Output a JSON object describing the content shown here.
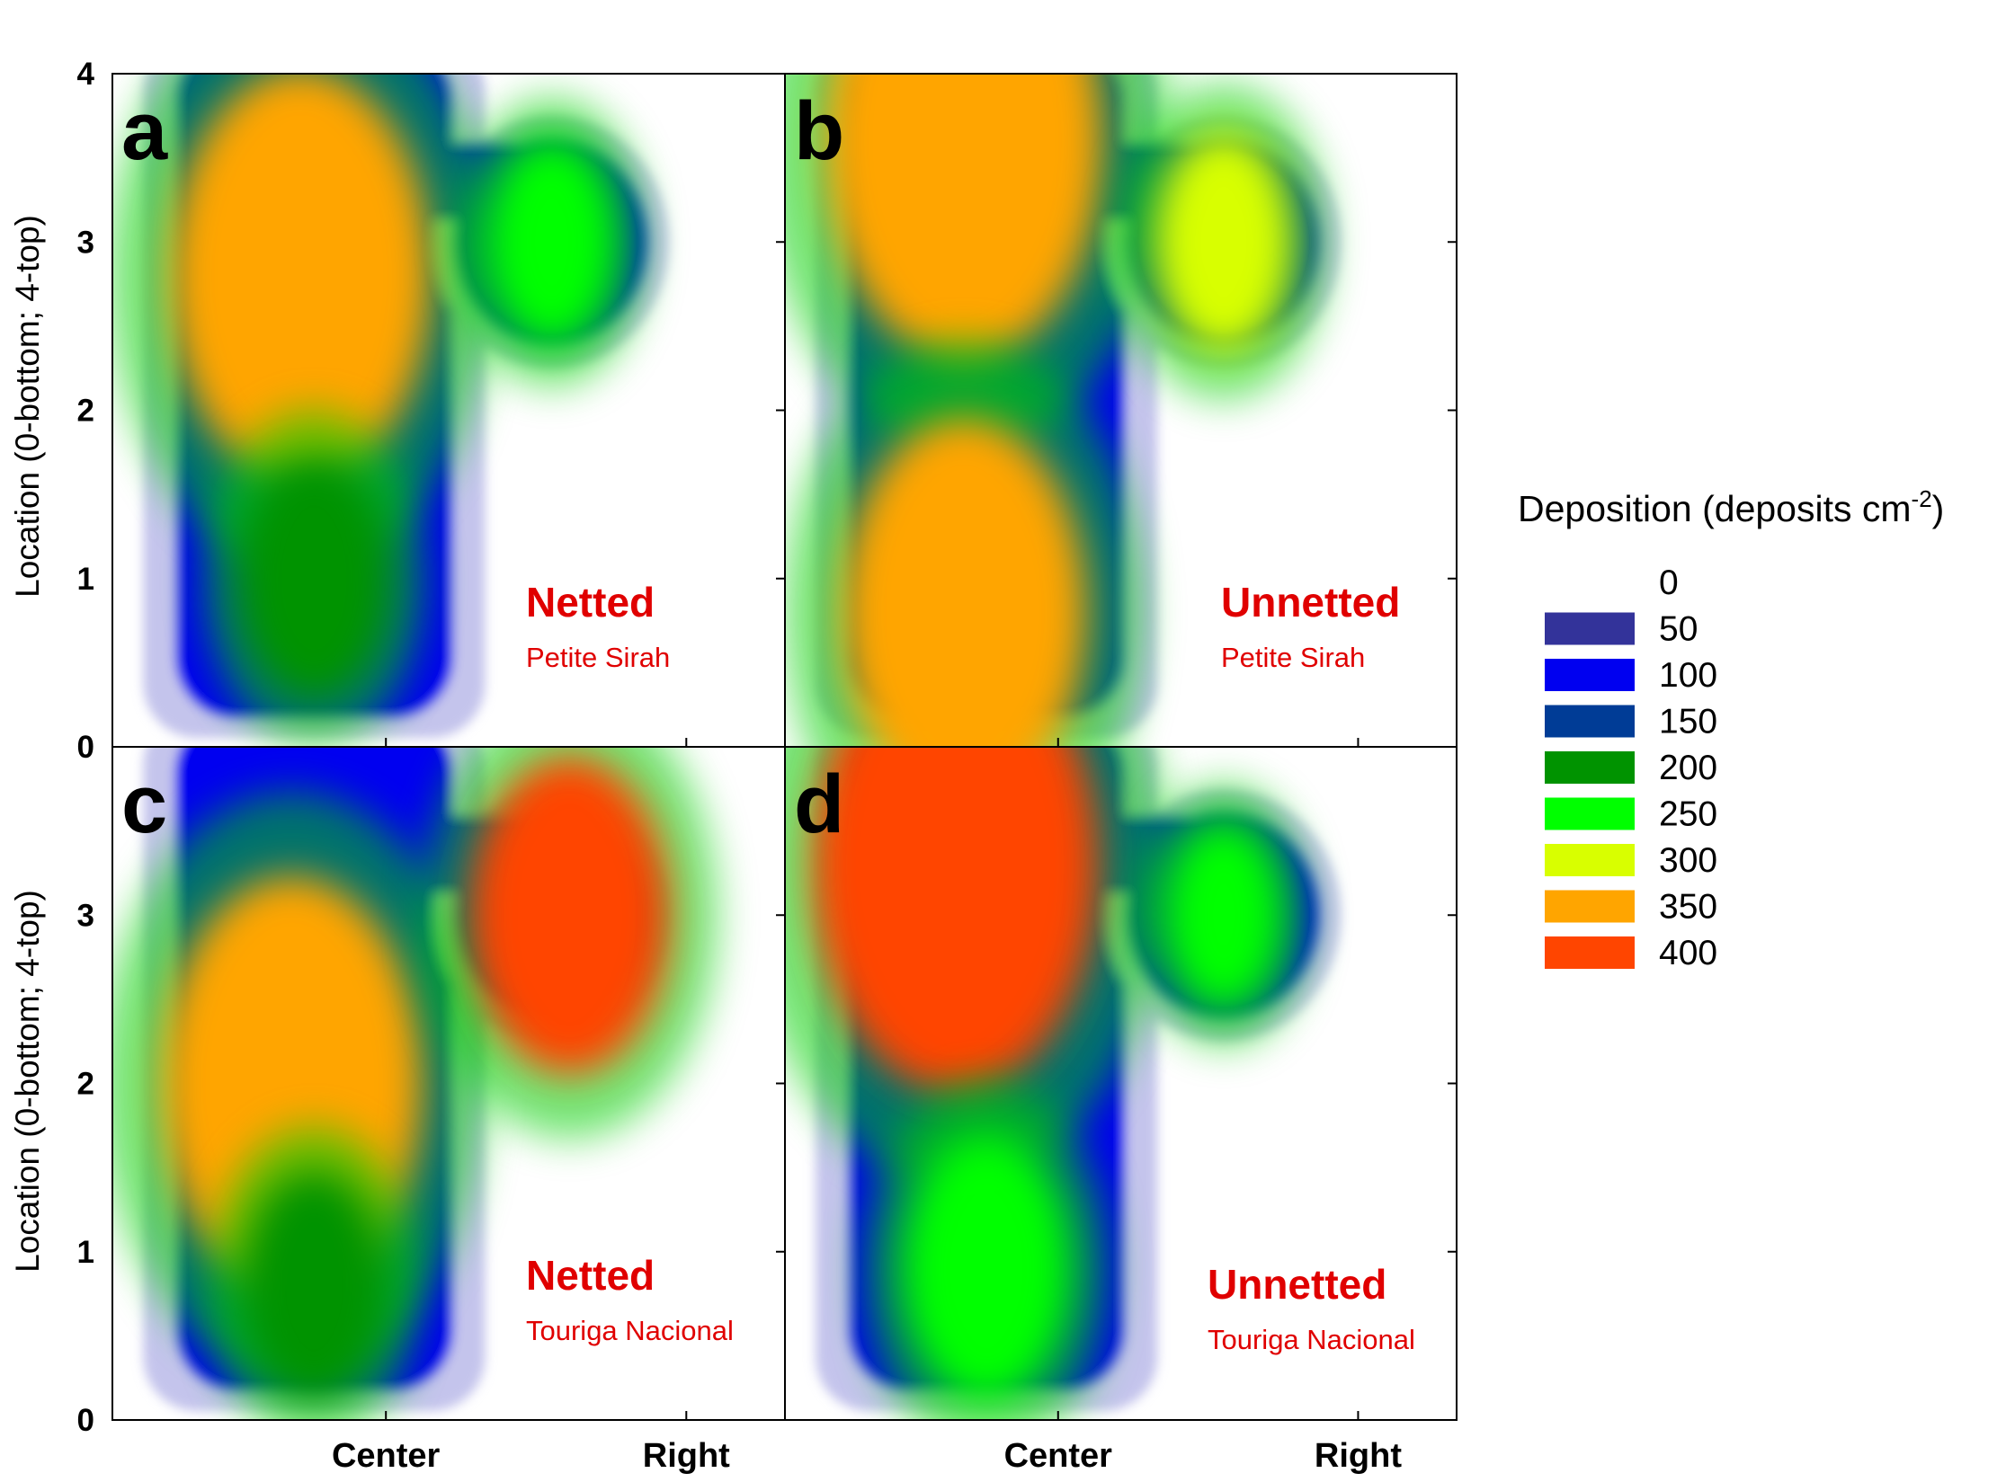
{
  "chart_data": {
    "type": "heatmap",
    "ylabel": "Location (0-bottom; 4-top)",
    "y_ticks": [
      "0",
      "1",
      "2",
      "3",
      "4"
    ],
    "ylim": [
      0,
      4
    ],
    "x_categories": [
      "Center",
      "Right"
    ],
    "legend": {
      "title": "Deposition (deposits cm",
      "title_sup": "-2",
      "title_end": ")",
      "levels": [
        {
          "value": "0",
          "color": "#ffffff"
        },
        {
          "value": "50",
          "color": "#33339a"
        },
        {
          "value": "100",
          "color": "#0000f0"
        },
        {
          "value": "150",
          "color": "#003c96"
        },
        {
          "value": "200",
          "color": "#009300"
        },
        {
          "value": "250",
          "color": "#00ff00"
        },
        {
          "value": "300",
          "color": "#d8ff00"
        },
        {
          "value": "350",
          "color": "#ffa500"
        },
        {
          "value": "400",
          "color": "#ff4500"
        }
      ]
    },
    "panels": [
      {
        "letter": "a",
        "treatment": "Netted",
        "cultivar": "Petite Sirah",
        "hotspots": [
          {
            "column": "Center",
            "x": 0.42,
            "y": 2.8,
            "value": 370
          },
          {
            "column": "Center",
            "x": 0.45,
            "y": 1.0,
            "value": 240
          },
          {
            "column": "Right",
            "x": 0.98,
            "y": 3.0,
            "value": 280
          }
        ]
      },
      {
        "letter": "b",
        "treatment": "Unnetted",
        "cultivar": "Petite Sirah",
        "hotspots": [
          {
            "column": "Center",
            "x": 0.4,
            "y": 3.6,
            "value": 390
          },
          {
            "column": "Center",
            "x": 0.4,
            "y": 0.8,
            "value": 350
          },
          {
            "column": "Right",
            "x": 0.98,
            "y": 3.0,
            "value": 300
          }
        ]
      },
      {
        "letter": "c",
        "treatment": "Netted",
        "cultivar": "Touriga Nacional",
        "hotspots": [
          {
            "column": "Center",
            "x": 0.4,
            "y": 2.0,
            "value": 370
          },
          {
            "column": "Center",
            "x": 0.45,
            "y": 0.8,
            "value": 230
          },
          {
            "column": "Right",
            "x": 1.02,
            "y": 3.0,
            "value": 400
          }
        ]
      },
      {
        "letter": "d",
        "treatment": "Unnetted",
        "cultivar": "Touriga Nacional",
        "hotspots": [
          {
            "column": "Center",
            "x": 0.38,
            "y": 3.3,
            "value": 400
          },
          {
            "column": "Center",
            "x": 0.45,
            "y": 0.9,
            "value": 260
          },
          {
            "column": "Right",
            "x": 0.98,
            "y": 3.0,
            "value": 260
          }
        ]
      }
    ]
  },
  "colors": {
    "treatment_text": "#e00000",
    "axis": "#000000"
  }
}
